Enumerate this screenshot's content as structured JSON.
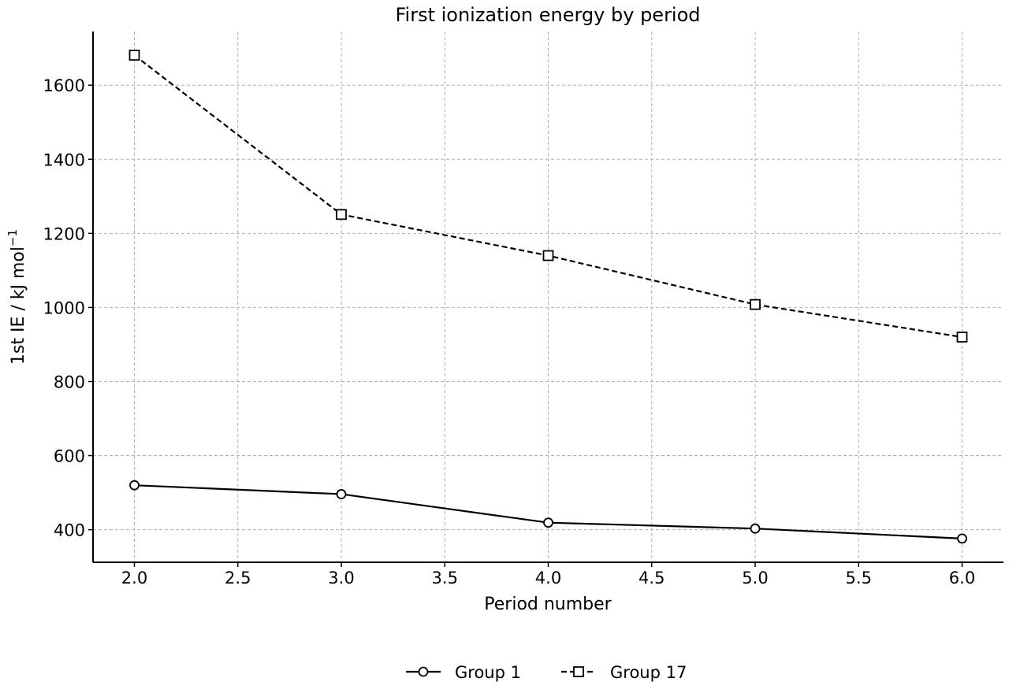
{
  "chart_data": {
    "type": "line",
    "title": "First ionization energy by period",
    "xlabel": "Period number",
    "ylabel": "1st IE / kJ mol",
    "ylabel_sup": "−1",
    "x": [
      2,
      3,
      4,
      5,
      6
    ],
    "xlim": [
      1.8,
      6.2
    ],
    "ylim": [
      312,
      1745
    ],
    "xticks": [
      "2.0",
      "2.5",
      "3.0",
      "3.5",
      "4.0",
      "4.5",
      "5.0",
      "5.5",
      "6.0"
    ],
    "yticks": [
      "400",
      "600",
      "800",
      "1000",
      "1200",
      "1400",
      "1600"
    ],
    "grid": true,
    "legend_position": "bottom-center",
    "series": [
      {
        "name": "Group 1",
        "values": [
          520,
          496,
          419,
          403,
          376
        ],
        "marker": "circle",
        "line": "solid",
        "color": "#000000"
      },
      {
        "name": "Group 17",
        "values": [
          1681,
          1251,
          1140,
          1008,
          920
        ],
        "marker": "square",
        "line": "dashed",
        "color": "#000000"
      }
    ]
  }
}
